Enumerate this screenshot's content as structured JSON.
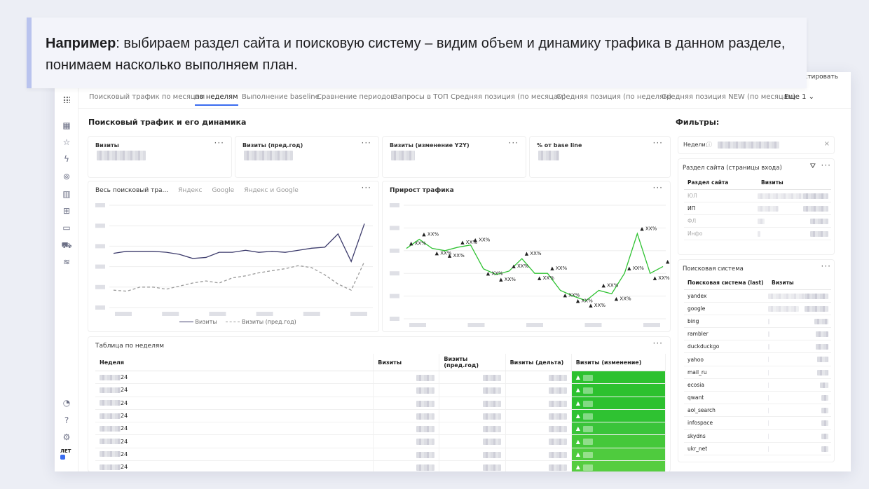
{
  "banner": {
    "lead": "Например",
    "text": ": выбираем раздел сайта и поисковую систему – видим объем и динамику трафика в данном разделе, понимаем насколько выполняем план."
  },
  "toolbar": {
    "edit_label": "дактировать"
  },
  "tabs": [
    "Поисковый трафик по месяцам",
    "по неделям",
    "Выполнение baseline",
    "Сравнение периодов",
    "Запросы в ТОП",
    "Средняя позиция (по месяцам)",
    "Средняя позиция (по неделям)",
    "Средняя позиция NEW (по месяцам)",
    "Еще 1"
  ],
  "main": {
    "title": "Поисковый трафик и его динамика",
    "kpis": [
      "Визиты",
      "Визиты (пред.год)",
      "Визиты (изменение Y2Y)",
      "% от base line"
    ],
    "traffic_chart": {
      "tabs": [
        "Весь поисковый тра...",
        "Яндекс",
        "Google",
        "Яндекс и Google"
      ],
      "legend": [
        "Визиты",
        "Визиты (пред.год)"
      ]
    },
    "growth_chart": {
      "title": "Прирост трафика",
      "point_label": "▲ XX%"
    },
    "table": {
      "title": "Таблица по неделям",
      "columns": [
        "Неделя",
        "Визиты",
        "Визиты (пред.год)",
        "Визиты (дельта)",
        "Визиты (изменение)"
      ],
      "week_suffix": "24",
      "change_mark": "▲"
    }
  },
  "filters": {
    "title": "Фильтры:",
    "weeks_label": "Недели:",
    "section": {
      "title": "Раздел сайта (страницы входа)",
      "columns": [
        "Раздел сайта",
        "Визиты"
      ],
      "rows": [
        "ЮЛ",
        "ИП",
        "ФЛ",
        "Инфо"
      ]
    },
    "search": {
      "title": "Поисковая система",
      "columns": [
        "Поисковая система (last)",
        "Визиты"
      ],
      "rows": [
        "yandex",
        "google",
        "bing",
        "rambler",
        "duckduckgo",
        "yahoo",
        "mail_ru",
        "ecosia",
        "qwant",
        "aol_search",
        "infospace",
        "skydns",
        "ukr_net"
      ]
    }
  },
  "colors": {
    "accent": "#3a6cf0",
    "line_main": "#3b3a6b",
    "line_prev": "#9a9a9a",
    "growth": "#2fc232"
  },
  "chart_data": [
    {
      "type": "line",
      "series": [
        {
          "name": "Визиты",
          "values": [
            0.53,
            0.55,
            0.55,
            0.55,
            0.54,
            0.52,
            0.48,
            0.49,
            0.54,
            0.54,
            0.56,
            0.54,
            0.55,
            0.54,
            0.56,
            0.58,
            0.59,
            0.72,
            0.45,
            0.82
          ]
        },
        {
          "name": "Визиты (пред.год)",
          "values": [
            0.17,
            0.16,
            0.2,
            0.2,
            0.18,
            0.21,
            0.24,
            0.26,
            0.24,
            0.29,
            0.31,
            0.34,
            0.36,
            0.38,
            0.41,
            0.39,
            0.32,
            0.23,
            0.17,
            0.45
          ]
        }
      ]
    },
    {
      "type": "line",
      "series": [
        {
          "name": "",
          "values": [
            0.62,
            0.7,
            0.62,
            0.6,
            0.63,
            0.65,
            0.44,
            0.39,
            0.42,
            0.53,
            0.4,
            0.4,
            0.25,
            0.2,
            0.16,
            0.25,
            0.22,
            0.4,
            0.75,
            0.4,
            0.46
          ]
        }
      ]
    }
  ]
}
